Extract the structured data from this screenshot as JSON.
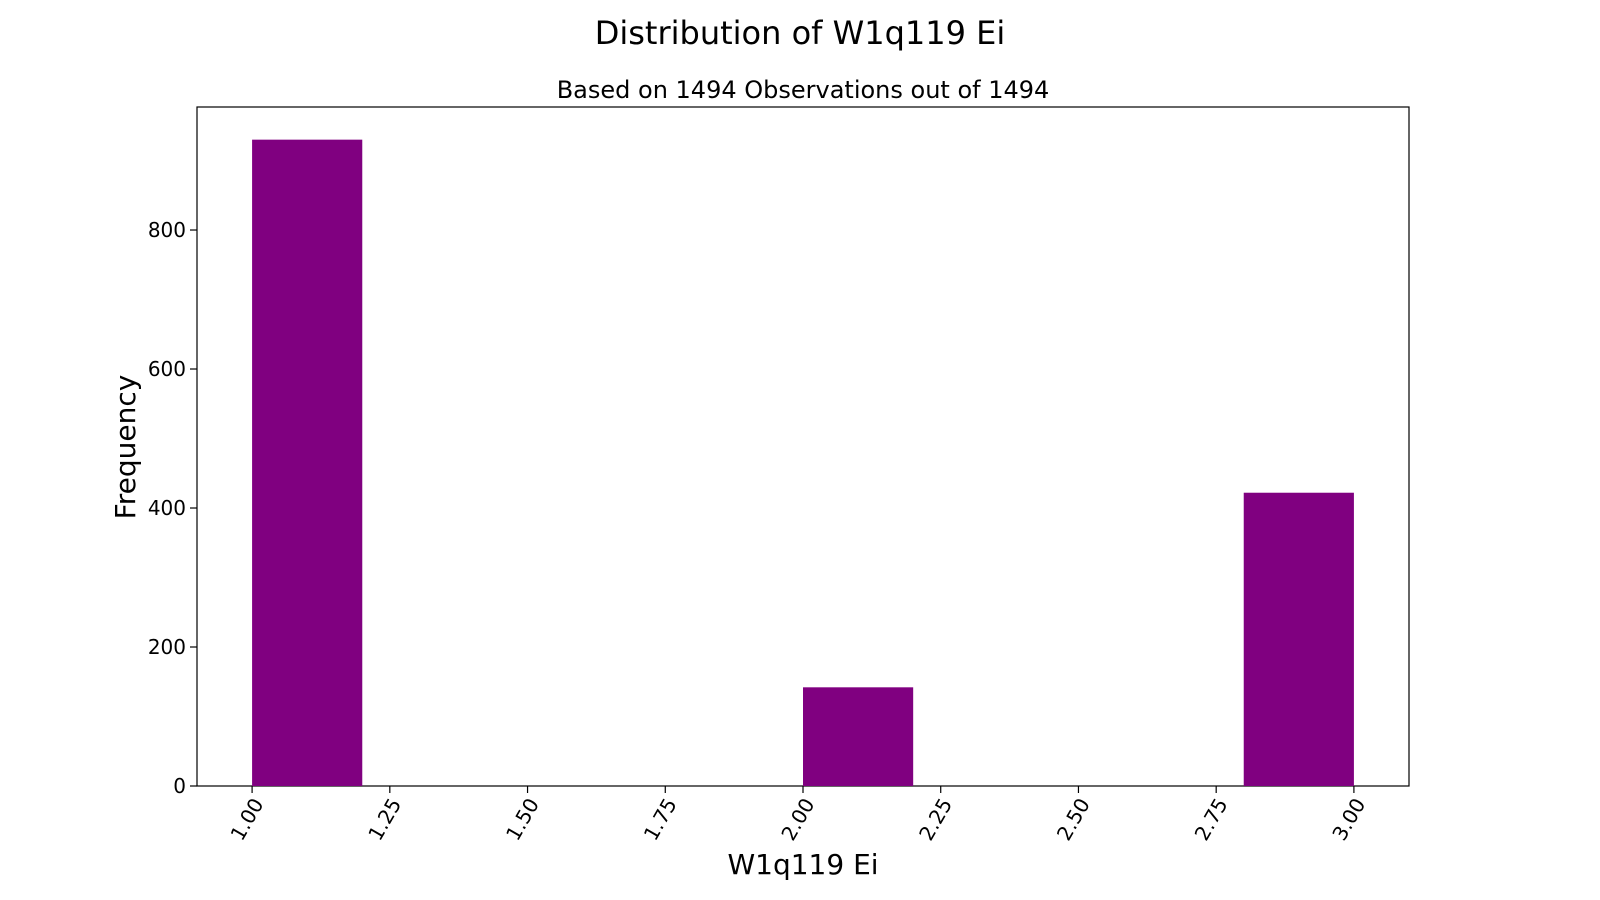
{
  "chart_data": {
    "type": "bar",
    "title": "Distribution of W1q119 Ei",
    "subtitle": "Based on 1494 Observations out of 1494",
    "xlabel": "W1q119 Ei",
    "ylabel": "Frequency",
    "xlim": [
      0.9,
      3.1
    ],
    "ylim": [
      0,
      977
    ],
    "bin_width": 0.2,
    "bins": [
      {
        "x_start": 1.0,
        "x_end": 1.2,
        "value": 930
      },
      {
        "x_start": 2.0,
        "x_end": 2.2,
        "value": 142
      },
      {
        "x_start": 2.8,
        "x_end": 3.0,
        "value": 422
      }
    ],
    "x_ticks": [
      1.0,
      1.25,
      1.5,
      1.75,
      2.0,
      2.25,
      2.5,
      2.75,
      3.0
    ],
    "x_tick_labels": [
      "1.00",
      "1.25",
      "1.50",
      "1.75",
      "2.00",
      "2.25",
      "2.50",
      "2.75",
      "3.00"
    ],
    "y_ticks": [
      0,
      200,
      400,
      600,
      800
    ],
    "y_tick_labels": [
      "0",
      "200",
      "400",
      "600",
      "800"
    ],
    "grid": false,
    "bar_color": "#800080"
  }
}
